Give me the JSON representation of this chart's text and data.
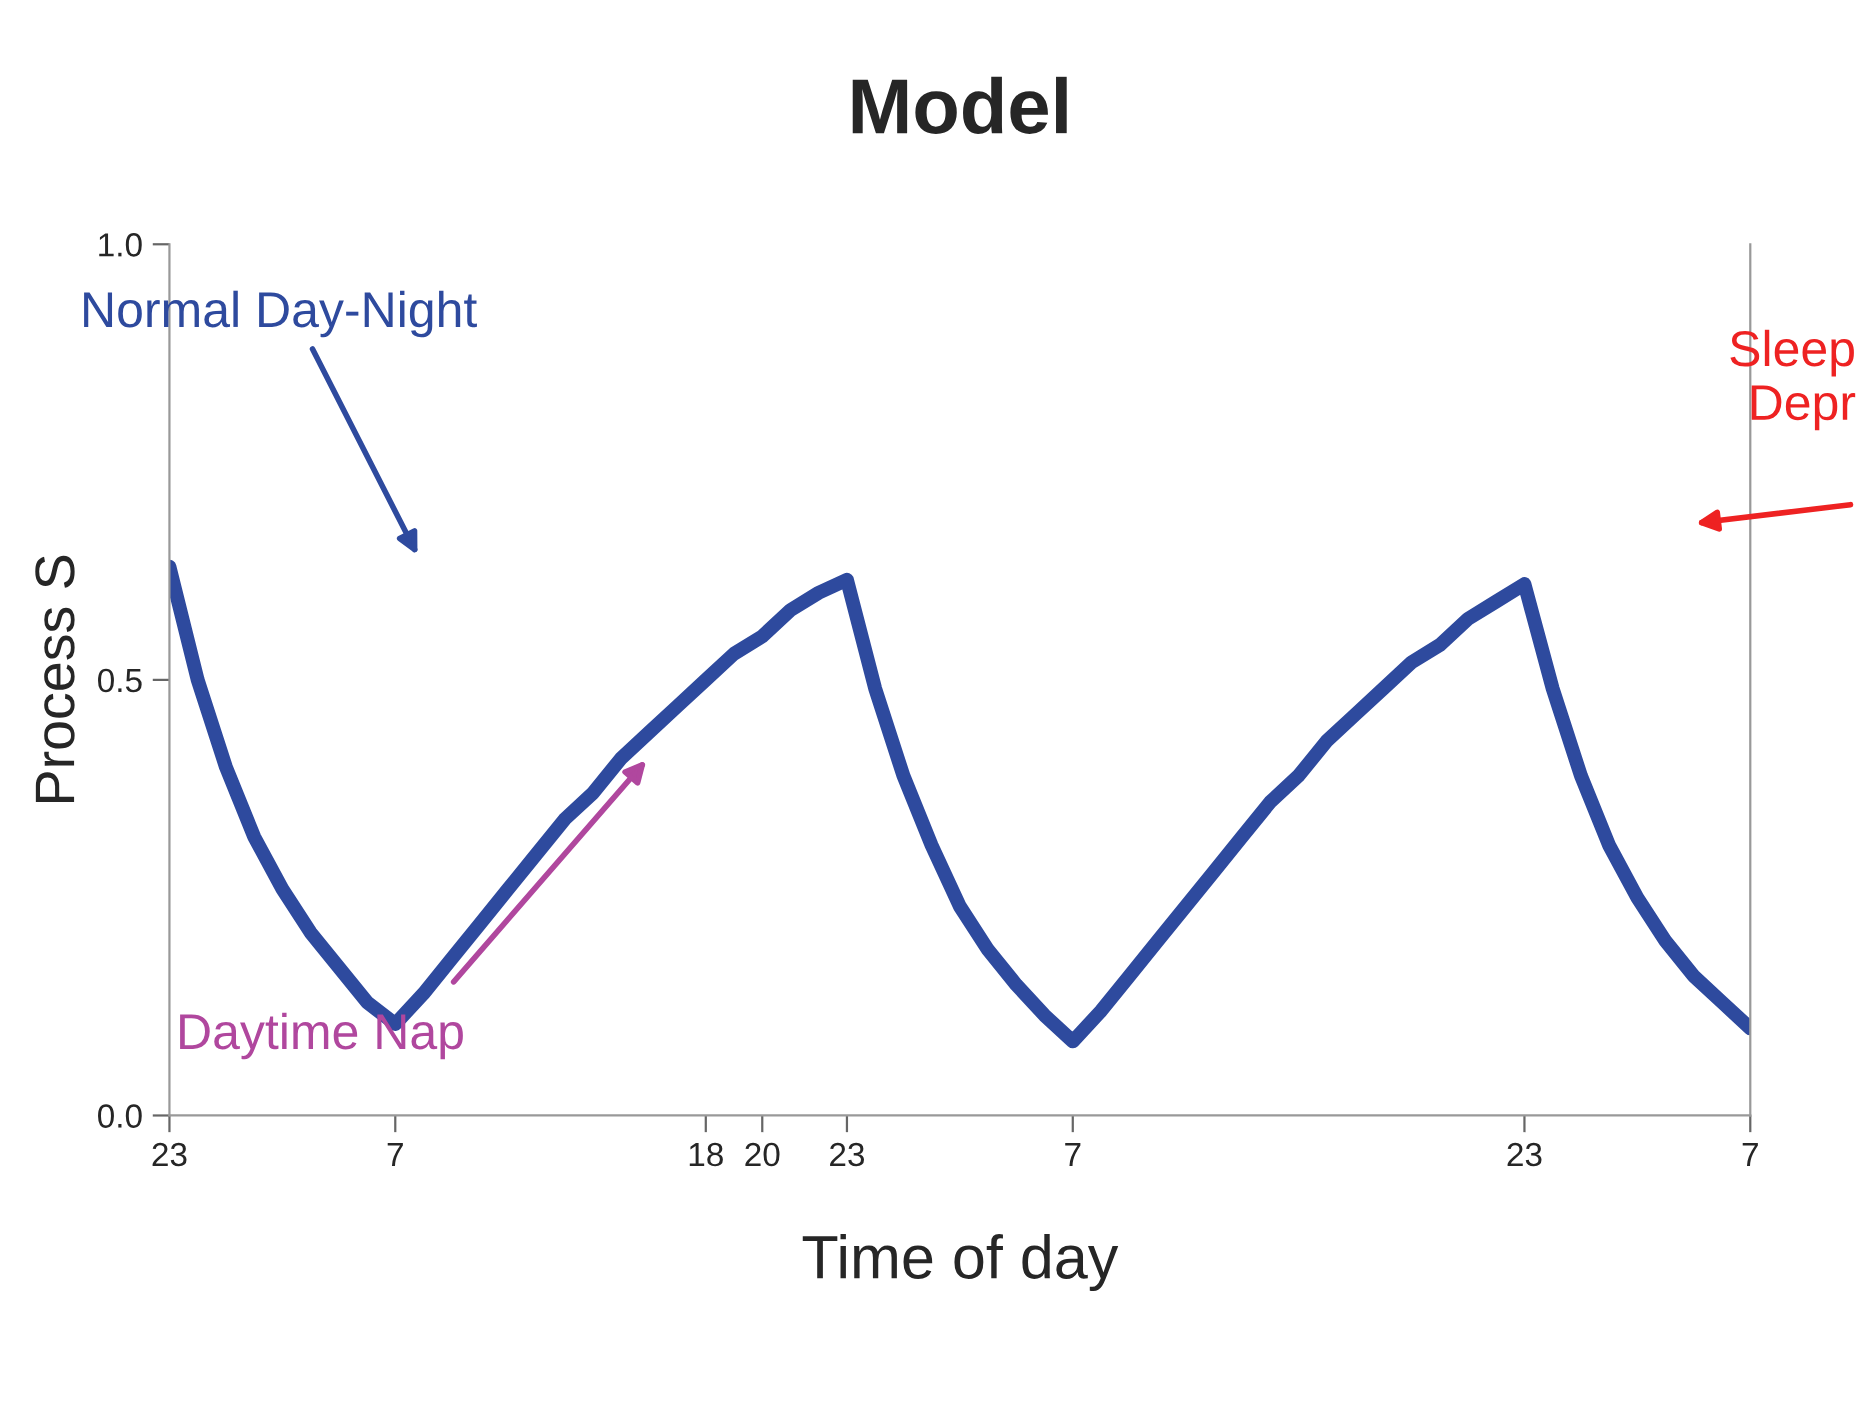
{
  "chart_data": {
    "type": "line",
    "title": "Model",
    "xlabel": "Time of day",
    "ylabel": "Process S",
    "categories": [
      "23",
      null,
      null,
      null,
      null,
      null,
      null,
      null,
      "7",
      null,
      null,
      null,
      null,
      null,
      null,
      null,
      null,
      null,
      null,
      "18",
      null,
      "20",
      null,
      null,
      "23",
      null,
      null,
      null,
      null,
      null,
      null,
      null,
      "7",
      null,
      null,
      null,
      null,
      null,
      null,
      null,
      null,
      null,
      null,
      null,
      null,
      null,
      null,
      null,
      "23",
      null,
      null,
      null,
      null,
      null,
      null,
      null,
      "7"
    ],
    "series": [
      {
        "color": "#2e4a9e",
        "values": [
          0.63,
          0.5,
          0.4,
          0.32,
          0.26,
          0.21,
          0.17,
          0.13,
          0.105,
          0.14,
          0.18,
          0.22,
          0.26,
          0.3,
          0.34,
          0.37,
          0.41,
          0.44,
          0.47,
          0.5,
          0.53,
          0.55,
          0.58,
          0.6,
          0.615,
          0.49,
          0.39,
          0.31,
          0.24,
          0.19,
          0.15,
          0.115,
          0.085,
          0.12,
          0.16,
          0.2,
          0.24,
          0.28,
          0.32,
          0.36,
          0.39,
          0.43,
          0.46,
          0.49,
          0.52,
          0.54,
          0.57,
          0.59,
          0.61,
          0.49,
          0.39,
          0.31,
          0.25,
          0.2,
          0.16,
          0.13,
          0.1
        ]
      }
    ],
    "ylim": [
      0,
      1
    ],
    "yticks": [
      {
        "value": 0,
        "label": "0.0"
      },
      {
        "value": 0.5,
        "label": "0.5"
      },
      {
        "value": 1,
        "label": "1.0"
      }
    ],
    "annotations": [
      "Normal Day-Night",
      "Daytime Nap",
      "Sleep\nDepr"
    ],
    "grid": false,
    "legend": false,
    "marker": "none",
    "line_style": "solid"
  }
}
